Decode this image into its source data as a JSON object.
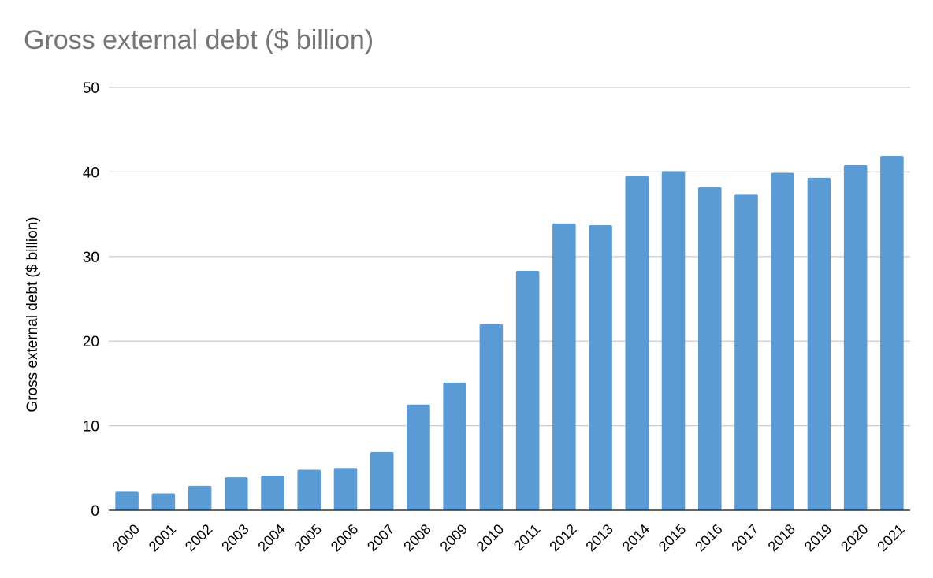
{
  "chart_data": {
    "type": "bar",
    "title": "Gross external debt ($ billion)",
    "ylabel": "Gross external debt ($ billion)",
    "xlabel": "",
    "ylim": [
      0,
      50
    ],
    "yticks": [
      0,
      10,
      20,
      30,
      40,
      50
    ],
    "grid": true,
    "legend": "none",
    "categories": [
      "2000",
      "2001",
      "2002",
      "2003",
      "2004",
      "2005",
      "2006",
      "2007",
      "2008",
      "2009",
      "2010",
      "2011",
      "2012",
      "2013",
      "2014",
      "2015",
      "2016",
      "2017",
      "2018",
      "2019",
      "2020",
      "2021"
    ],
    "values": [
      2.2,
      2.0,
      2.9,
      3.9,
      4.1,
      4.8,
      5.0,
      6.9,
      12.5,
      15.1,
      22.0,
      28.3,
      33.9,
      33.7,
      39.5,
      40.1,
      38.2,
      37.4,
      39.9,
      39.3,
      40.8,
      41.9
    ],
    "bar_color": "#5b9bd5"
  }
}
